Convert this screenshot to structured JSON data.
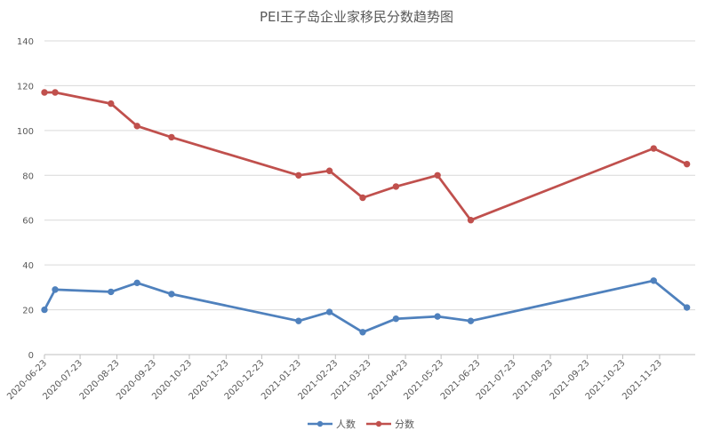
{
  "chart_data": {
    "type": "line",
    "title": "PEI王子岛企业家移民分数趋势图",
    "xlabel": "",
    "ylabel": "",
    "ylim": [
      0,
      140
    ],
    "yticks": [
      0,
      20,
      40,
      60,
      80,
      100,
      120,
      140
    ],
    "grid": true,
    "legend_position": "bottom-center",
    "x_tick_labels": [
      "2020-06-23",
      "2020-07-23",
      "2020-08-23",
      "2020-09-23",
      "2020-10-23",
      "2020-11-23",
      "2020-12-23",
      "2021-01-23",
      "2021-02-23",
      "2021-03-23",
      "2021-04-23",
      "2021-05-23",
      "2021-06-23",
      "2021-07-23",
      "2021-08-23",
      "2021-09-23",
      "2021-10-23",
      "2021-11-23"
    ],
    "x_range": [
      "2020-06-23",
      "2021-12-23"
    ],
    "series": [
      {
        "name": "人数",
        "color": "#4f81bd",
        "points": [
          {
            "x": "2020-06-23",
            "y": 20
          },
          {
            "x": "2020-07-02",
            "y": 29
          },
          {
            "x": "2020-08-18",
            "y": 28
          },
          {
            "x": "2020-09-09",
            "y": 32
          },
          {
            "x": "2020-10-08",
            "y": 27
          },
          {
            "x": "2021-01-23",
            "y": 15
          },
          {
            "x": "2021-02-18",
            "y": 19
          },
          {
            "x": "2021-03-18",
            "y": 10
          },
          {
            "x": "2021-04-15",
            "y": 16
          },
          {
            "x": "2021-05-20",
            "y": 17
          },
          {
            "x": "2021-06-17",
            "y": 15
          },
          {
            "x": "2021-11-18",
            "y": 33
          },
          {
            "x": "2021-12-16",
            "y": 21
          }
        ]
      },
      {
        "name": "分数",
        "color": "#c0504d",
        "points": [
          {
            "x": "2020-06-23",
            "y": 117
          },
          {
            "x": "2020-07-02",
            "y": 117
          },
          {
            "x": "2020-08-18",
            "y": 112
          },
          {
            "x": "2020-09-09",
            "y": 102
          },
          {
            "x": "2020-10-08",
            "y": 97
          },
          {
            "x": "2021-01-23",
            "y": 80
          },
          {
            "x": "2021-02-18",
            "y": 82
          },
          {
            "x": "2021-03-18",
            "y": 70
          },
          {
            "x": "2021-04-15",
            "y": 75
          },
          {
            "x": "2021-05-20",
            "y": 80
          },
          {
            "x": "2021-06-17",
            "y": 60
          },
          {
            "x": "2021-11-18",
            "y": 92
          },
          {
            "x": "2021-12-16",
            "y": 85
          }
        ]
      }
    ]
  }
}
